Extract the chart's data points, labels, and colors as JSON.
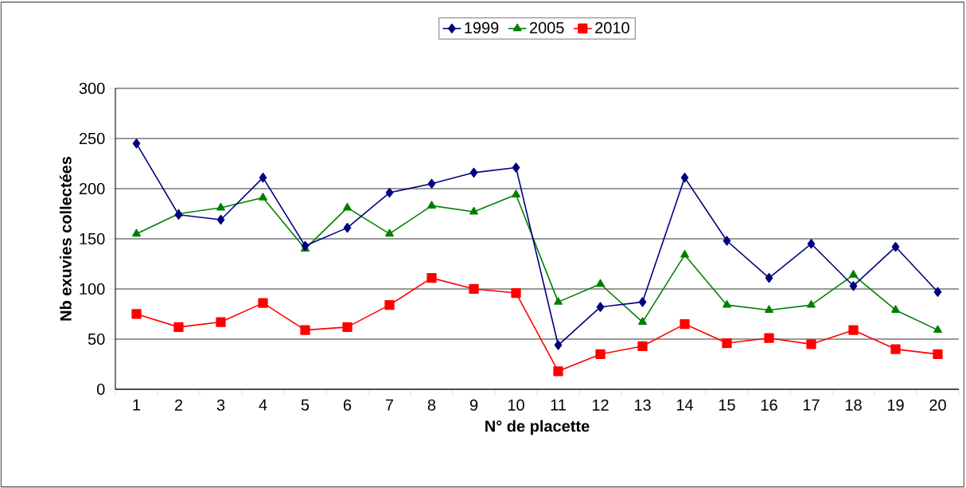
{
  "chart_data": {
    "type": "line",
    "xlabel": "N° de placette",
    "ylabel": "Nb exuvies collectées",
    "categories": [
      "1",
      "2",
      "3",
      "4",
      "5",
      "6",
      "7",
      "8",
      "9",
      "10",
      "11",
      "12",
      "13",
      "14",
      "15",
      "16",
      "17",
      "18",
      "19",
      "20"
    ],
    "series": [
      {
        "name": "1999",
        "color": "#000080",
        "marker": "diamond",
        "values": [
          245,
          174,
          169,
          211,
          143,
          161,
          196,
          205,
          216,
          221,
          44,
          82,
          87,
          211,
          148,
          111,
          145,
          103,
          142,
          97
        ]
      },
      {
        "name": "2005",
        "color": "#008000",
        "marker": "triangle",
        "values": [
          155,
          175,
          181,
          191,
          140,
          181,
          155,
          183,
          177,
          194,
          87,
          105,
          67,
          134,
          84,
          79,
          84,
          114,
          79,
          59
        ]
      },
      {
        "name": "2010",
        "color": "#ff0000",
        "marker": "square",
        "values": [
          75,
          62,
          67,
          86,
          59,
          62,
          84,
          111,
          100,
          96,
          18,
          35,
          43,
          65,
          46,
          51,
          45,
          59,
          40,
          35
        ]
      }
    ],
    "ylim": [
      0,
      300
    ],
    "yticks": [
      0,
      50,
      100,
      150,
      200,
      250,
      300
    ],
    "grid": "y",
    "legend": "top",
    "line_style": "solid"
  }
}
